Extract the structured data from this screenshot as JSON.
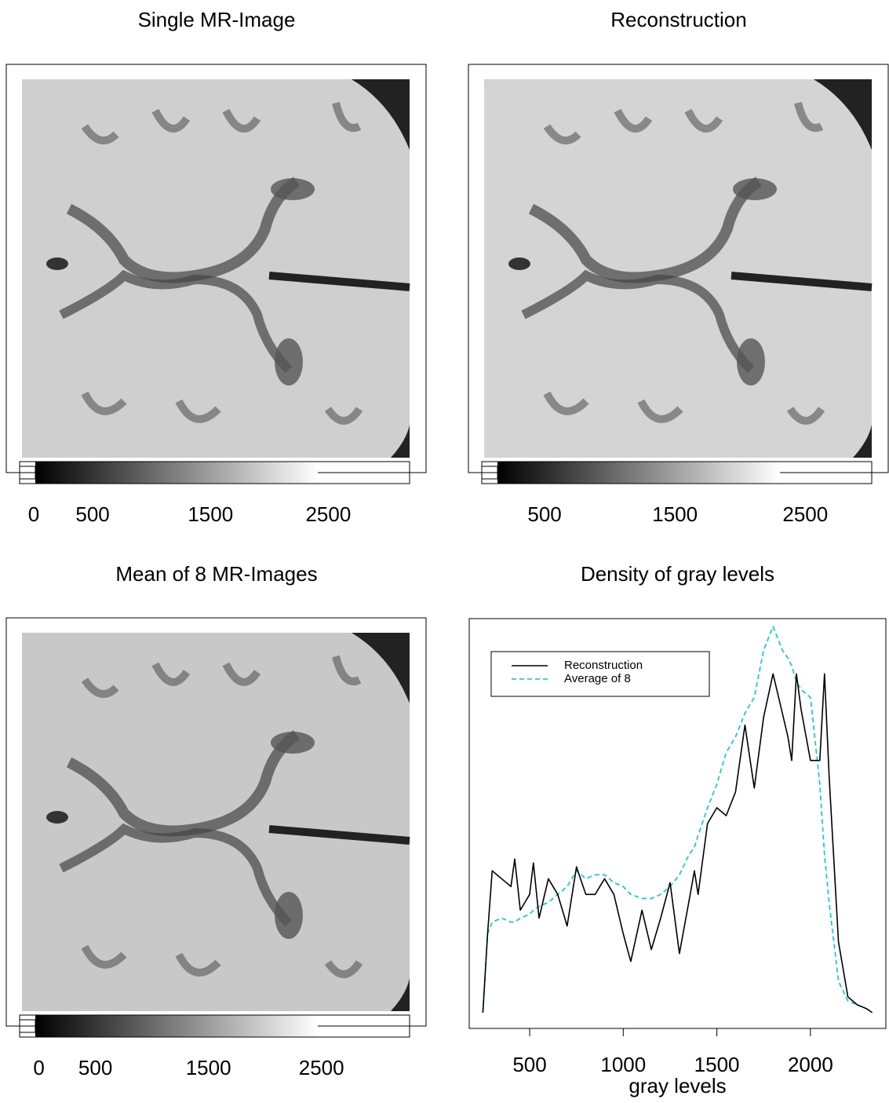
{
  "panels": [
    {
      "title": "Single MR-Image",
      "colorbar_lim": [
        -100,
        3190
      ],
      "colorbar_ticks": [
        0,
        500,
        1500,
        2500
      ]
    },
    {
      "title": "Reconstruction",
      "colorbar_lim": [
        36,
        3010
      ],
      "colorbar_ticks": [
        500,
        1500,
        2500
      ]
    },
    {
      "title": "Mean of 8 MR-Images",
      "colorbar_lim": [
        -150,
        3280
      ],
      "colorbar_ticks": [
        0,
        500,
        1500,
        2500
      ]
    }
  ],
  "chart_data": {
    "type": "line",
    "title": "Density of gray levels",
    "x_label": "gray levels",
    "x": [
      250,
      275,
      300,
      350,
      400,
      420,
      450,
      500,
      520,
      550,
      600,
      650,
      700,
      750,
      800,
      850,
      900,
      950,
      1000,
      1040,
      1100,
      1150,
      1200,
      1250,
      1300,
      1350,
      1380,
      1400,
      1450,
      1500,
      1550,
      1600,
      1650,
      1700,
      1750,
      1800,
      1850,
      1880,
      1900,
      1925,
      1950,
      2000,
      2050,
      2075,
      2100,
      2150,
      2200,
      2250,
      2300,
      2330
    ],
    "series": [
      {
        "name": "Reconstruction",
        "color": "#000000",
        "dash": "none",
        "values": [
          0,
          0.2,
          0.36,
          0.34,
          0.32,
          0.39,
          0.26,
          0.3,
          0.38,
          0.24,
          0.34,
          0.3,
          0.22,
          0.37,
          0.3,
          0.3,
          0.34,
          0.3,
          0.2,
          0.13,
          0.26,
          0.16,
          0.24,
          0.33,
          0.15,
          0.28,
          0.36,
          0.3,
          0.48,
          0.52,
          0.5,
          0.56,
          0.73,
          0.57,
          0.75,
          0.86,
          0.76,
          0.7,
          0.64,
          0.86,
          0.77,
          0.64,
          0.64,
          0.86,
          0.6,
          0.18,
          0.04,
          0.02,
          0.01,
          0
        ]
      },
      {
        "name": "Average of 8",
        "color": "#00cccc",
        "dash": "6 4",
        "values": [
          0,
          0.2,
          0.23,
          0.24,
          0.23,
          0.23,
          0.24,
          0.25,
          0.26,
          0.27,
          0.28,
          0.3,
          0.32,
          0.36,
          0.34,
          0.35,
          0.35,
          0.33,
          0.32,
          0.3,
          0.29,
          0.29,
          0.3,
          0.32,
          0.35,
          0.4,
          0.42,
          0.45,
          0.52,
          0.58,
          0.66,
          0.7,
          0.76,
          0.8,
          0.92,
          0.98,
          0.92,
          0.9,
          0.88,
          0.84,
          0.82,
          0.8,
          0.58,
          0.4,
          0.28,
          0.08,
          0.03,
          0.02,
          0.01,
          0
        ]
      }
    ],
    "xlim": [
      177,
      2403
    ],
    "ylim": [
      -0.04,
      1.0
    ],
    "xticks": [
      500,
      1000,
      1500,
      2000
    ],
    "legend": "top-left"
  }
}
